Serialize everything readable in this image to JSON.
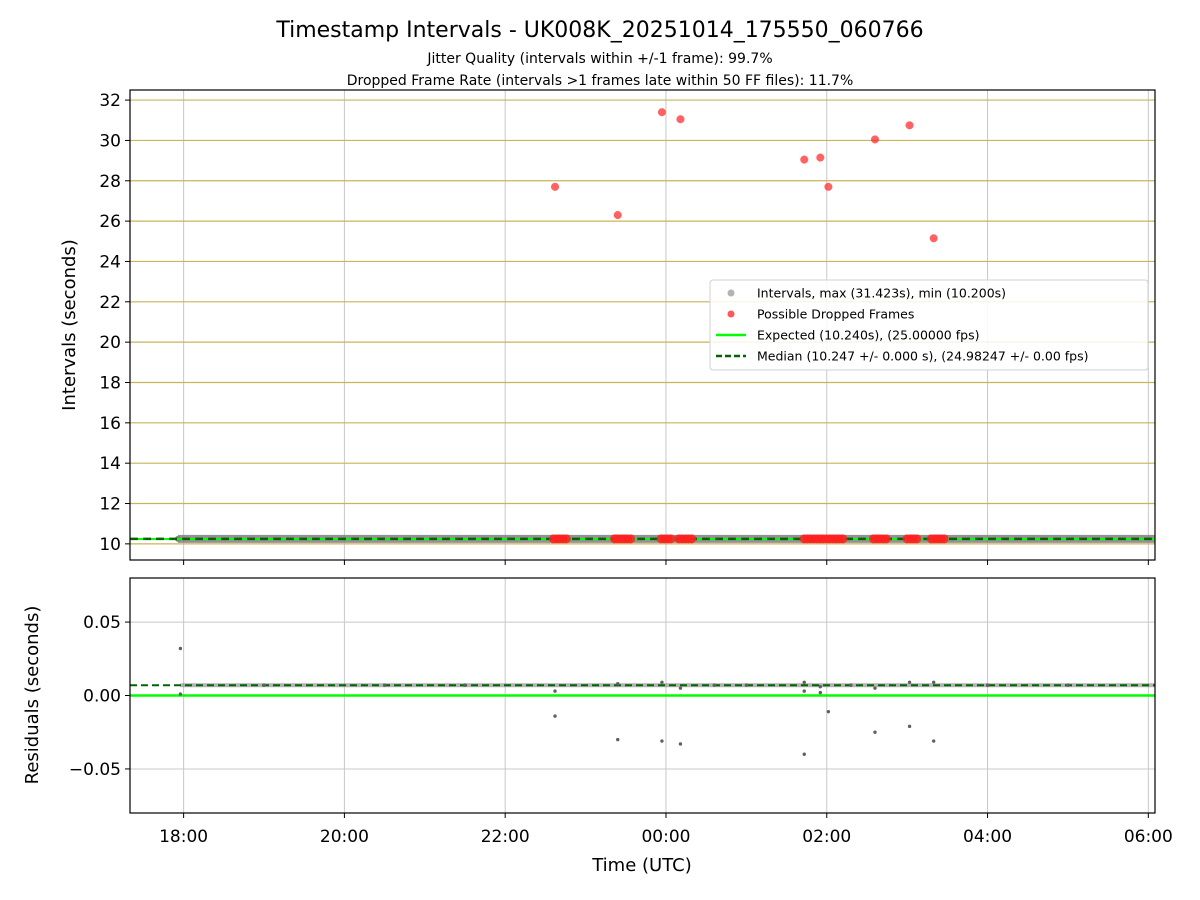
{
  "title": "Timestamp Intervals - UK008K_20251014_175550_060766",
  "subtitle_lines": [
    "Jitter Quality (intervals within +/-1 frame): 99.7%",
    "Dropped Frame Rate (intervals >1 frames late within 50 FF files): 11.7%"
  ],
  "colors": {
    "intervals": "#808080",
    "dropped": "#ff2020",
    "expected": "#00ff00",
    "median": "#006400",
    "band": "#c8b45a",
    "grid": "#c8c8c8"
  },
  "chart_data": [
    {
      "type": "scatter",
      "name": "intervals",
      "ylabel": "Intervals (seconds)",
      "xlim_hours": [
        -0.667,
        12.083
      ],
      "ylim": [
        9.2,
        32.5
      ],
      "yticks": [
        10,
        12,
        14,
        16,
        18,
        20,
        22,
        24,
        26,
        28,
        30,
        32
      ],
      "ytick_labels": [
        "10",
        "12",
        "14",
        "16",
        "18",
        "20",
        "22",
        "24",
        "26",
        "28",
        "30",
        "32"
      ],
      "xtick_hours": [
        0,
        2,
        4,
        6,
        8,
        10,
        12
      ],
      "grid": true,
      "reference_bands": [
        10,
        12,
        14,
        16,
        18,
        20,
        22,
        24,
        26,
        28,
        30,
        32
      ],
      "legend_position": "center-right",
      "legend": [
        {
          "label": "Intervals, max (31.423s), min (10.200s)",
          "kind": "marker",
          "color_key": "intervals"
        },
        {
          "label": "Possible Dropped Frames",
          "kind": "marker",
          "color_key": "dropped"
        },
        {
          "label": "Expected (10.240s), (25.00000 fps)",
          "kind": "line",
          "color_key": "expected"
        },
        {
          "label": "Median (10.247 +/- 0.000 s), (24.98247 +/- 0.00 fps)",
          "kind": "dashed",
          "color_key": "median"
        }
      ],
      "series": [
        {
          "name": "Intervals",
          "x_start": -0.07,
          "x_end": 12.083,
          "y_center": 10.247,
          "y_min": 10.2,
          "y_max": 31.423
        },
        {
          "name": "Expected",
          "y": 10.24
        },
        {
          "name": "Median",
          "y": 10.247
        },
        {
          "name": "Possible Dropped Frames",
          "x": [
            4.62,
            5.4,
            5.95,
            6.18,
            7.72,
            7.92,
            8.02,
            8.6,
            9.03,
            9.33
          ],
          "y": [
            27.7,
            26.3,
            31.4,
            31.05,
            29.05,
            29.15,
            27.7,
            30.05,
            30.75,
            25.15
          ]
        },
        {
          "name": "Dropped cluster baseline",
          "y": 10.2,
          "x": [
            4.6,
            4.64,
            4.68,
            4.72,
            4.76,
            5.36,
            5.4,
            5.44,
            5.48,
            5.52,
            5.56,
            5.94,
            5.98,
            6.02,
            6.06,
            6.16,
            6.2,
            6.24,
            6.28,
            6.32,
            7.72,
            7.76,
            7.8,
            7.84,
            7.88,
            7.92,
            7.96,
            8.0,
            8.04,
            8.08,
            8.12,
            8.16,
            8.2,
            8.58,
            8.62,
            8.66,
            8.7,
            8.74,
            9.0,
            9.04,
            9.08,
            9.12,
            9.3,
            9.34,
            9.38,
            9.42,
            9.46
          ]
        }
      ]
    },
    {
      "type": "scatter",
      "name": "residuals",
      "ylabel": "Residuals (seconds)",
      "xlabel": "Time (UTC)",
      "xlim_hours": [
        -0.667,
        12.083
      ],
      "ylim": [
        -0.08,
        0.08
      ],
      "yticks": [
        0.05,
        0.0,
        -0.05
      ],
      "ytick_labels": [
        "0.05",
        "0.00",
        "−0.05"
      ],
      "xtick_hours": [
        0,
        2,
        4,
        6,
        8,
        10,
        12
      ],
      "xtick_labels": [
        "18:00",
        "20:00",
        "22:00",
        "00:00",
        "02:00",
        "04:00",
        "06:00"
      ],
      "grid": true,
      "series": [
        {
          "name": "Expected residual",
          "y": 0.0
        },
        {
          "name": "Median residual",
          "y": 0.007
        },
        {
          "name": "Residual points",
          "x": [
            -0.04,
            -0.04,
            4.62,
            4.62,
            5.4,
            5.4,
            5.95,
            5.95,
            6.18,
            6.18,
            7.72,
            7.72,
            7.72,
            7.92,
            7.92,
            8.02,
            8.6,
            8.6,
            9.03,
            9.03,
            9.33,
            9.33,
            1.0,
            2.5,
            3.5,
            6.6,
            7.0,
            8.3,
            10.0,
            11.0
          ],
          "y": [
            0.032,
            0.001,
            0.003,
            -0.014,
            0.008,
            -0.03,
            0.009,
            -0.031,
            0.005,
            -0.033,
            0.009,
            0.003,
            -0.04,
            0.002,
            0.006,
            -0.011,
            0.005,
            -0.025,
            0.009,
            -0.021,
            0.009,
            -0.031,
            0.007,
            0.007,
            0.007,
            0.007,
            0.007,
            0.007,
            0.007,
            0.007
          ]
        }
      ]
    }
  ]
}
